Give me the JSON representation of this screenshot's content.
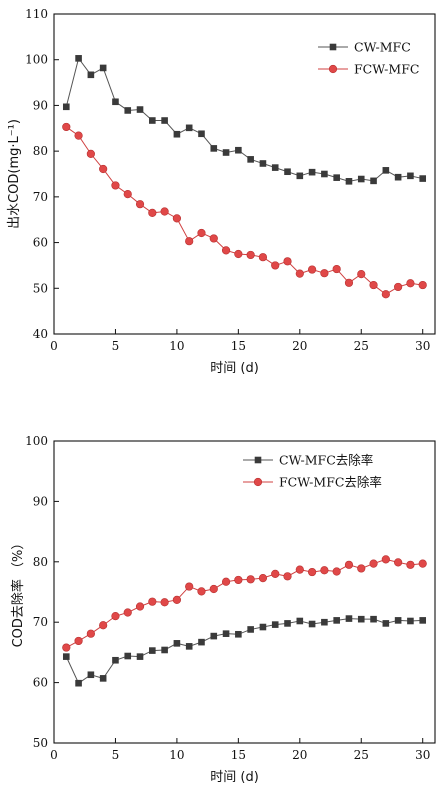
{
  "chart_data": [
    {
      "type": "line",
      "title": "",
      "xlabel": "时间 (d)",
      "ylabel": "出水COD(mg·L⁻¹)",
      "xlim": [
        0,
        31
      ],
      "ylim": [
        40,
        110
      ],
      "xticks": [
        0,
        5,
        10,
        15,
        20,
        25,
        30
      ],
      "yticks": [
        40,
        50,
        60,
        70,
        80,
        90,
        100,
        110
      ],
      "legend_position": "top-right",
      "grid": false,
      "x": [
        1,
        2,
        3,
        4,
        5,
        6,
        7,
        8,
        9,
        10,
        11,
        12,
        13,
        14,
        15,
        16,
        17,
        18,
        19,
        20,
        21,
        22,
        23,
        24,
        25,
        26,
        27,
        28,
        29,
        30
      ],
      "series": [
        {
          "name": "CW-MFC",
          "marker": "square",
          "color": "#3a3a3a",
          "values": [
            89.7,
            100.3,
            96.7,
            98.2,
            90.8,
            88.9,
            89.1,
            86.7,
            86.7,
            83.7,
            85.1,
            83.8,
            80.6,
            79.7,
            80.2,
            78.2,
            77.3,
            76.4,
            75.5,
            74.6,
            75.4,
            75.0,
            74.2,
            73.4,
            73.9,
            73.5,
            75.8,
            74.3,
            74.6,
            74.0
          ]
        },
        {
          "name": "FCW-MFC",
          "marker": "circle",
          "color": "#e04848",
          "values": [
            85.3,
            83.4,
            79.4,
            76.1,
            72.5,
            70.6,
            68.4,
            66.5,
            66.8,
            65.3,
            60.3,
            62.1,
            60.9,
            58.3,
            57.5,
            57.3,
            56.8,
            55.0,
            55.9,
            53.2,
            54.1,
            53.3,
            54.2,
            51.2,
            53.1,
            50.7,
            48.7,
            50.3,
            51.1,
            50.7
          ]
        }
      ]
    },
    {
      "type": "line",
      "title": "",
      "xlabel": "时间 (d)",
      "ylabel": "COD去除率 （%）",
      "xlim": [
        0,
        31
      ],
      "ylim": [
        50,
        100
      ],
      "xticks": [
        0,
        5,
        10,
        15,
        20,
        25,
        30
      ],
      "yticks": [
        50,
        60,
        70,
        80,
        90,
        100
      ],
      "legend_position": "top-right",
      "grid": false,
      "x": [
        1,
        2,
        3,
        4,
        5,
        6,
        7,
        8,
        9,
        10,
        11,
        12,
        13,
        14,
        15,
        16,
        17,
        18,
        19,
        20,
        21,
        22,
        23,
        24,
        25,
        26,
        27,
        28,
        29,
        30
      ],
      "series": [
        {
          "name": "CW-MFC去除率",
          "marker": "square",
          "color": "#3a3a3a",
          "values": [
            64.3,
            59.9,
            61.3,
            60.7,
            63.7,
            64.4,
            64.3,
            65.3,
            65.4,
            66.5,
            66.0,
            66.7,
            67.7,
            68.1,
            68.0,
            68.8,
            69.2,
            69.6,
            69.8,
            70.2,
            69.7,
            70.0,
            70.3,
            70.6,
            70.5,
            70.5,
            69.8,
            70.3,
            70.2,
            70.3
          ]
        },
        {
          "name": "FCW-MFC去除率",
          "marker": "circle",
          "color": "#e04848",
          "values": [
            65.8,
            66.9,
            68.1,
            69.5,
            71.0,
            71.6,
            72.6,
            73.4,
            73.3,
            73.7,
            75.9,
            75.1,
            75.5,
            76.7,
            77.0,
            77.1,
            77.3,
            78.0,
            77.6,
            78.7,
            78.3,
            78.6,
            78.4,
            79.5,
            78.9,
            79.7,
            80.4,
            79.9,
            79.5,
            79.7
          ]
        }
      ]
    }
  ]
}
